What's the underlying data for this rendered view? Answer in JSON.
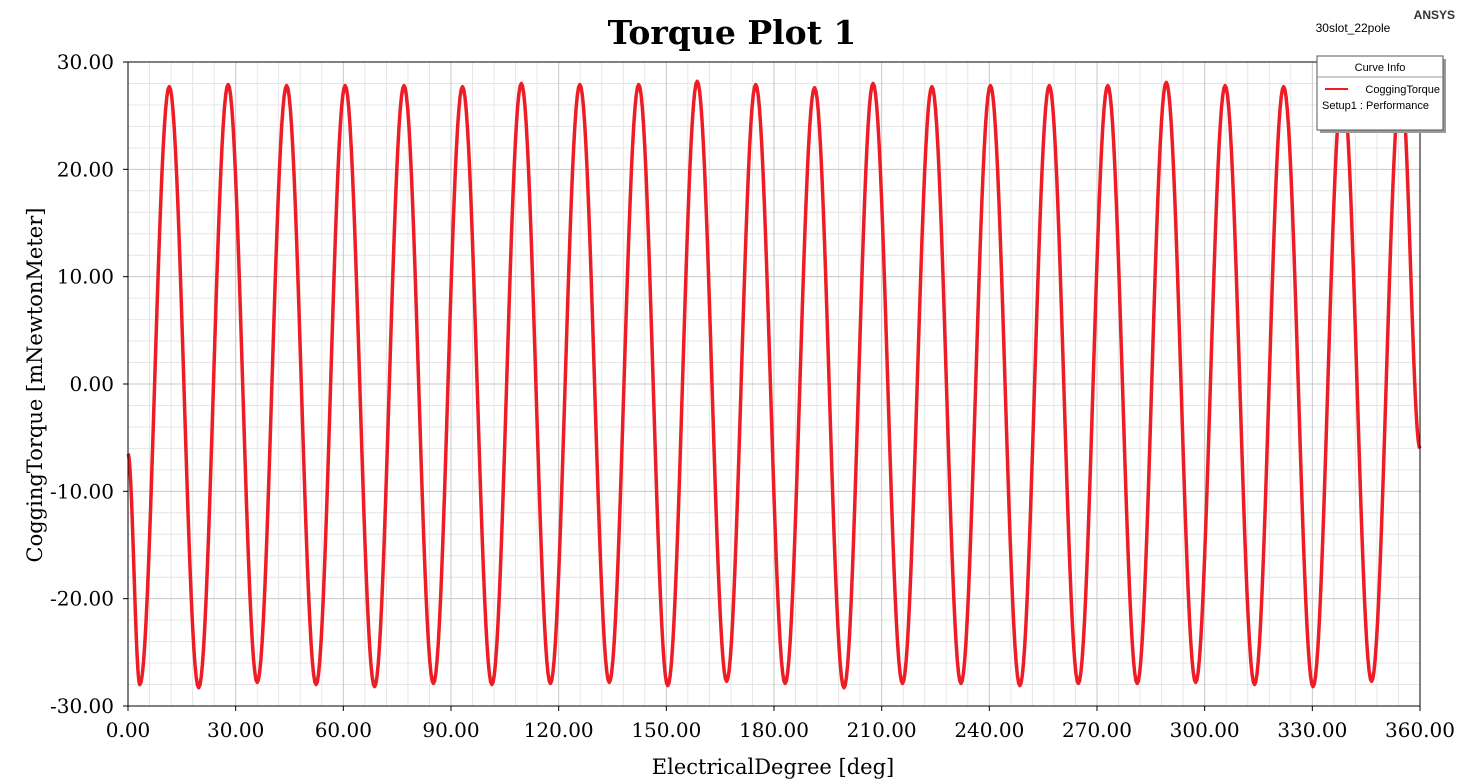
{
  "header": {
    "brand": "ANSYS",
    "design_name": "30slot_22pole"
  },
  "legend": {
    "title": "Curve Info",
    "entries": [
      {
        "name": "CoggingTorque",
        "source": "Setup1 : Performance"
      }
    ]
  },
  "colors": {
    "series": "#ee1c25",
    "grid_major": "#c8c8c8",
    "grid_minor": "#e6e6e6",
    "axis": "#000000"
  },
  "chart_data": {
    "type": "line",
    "title": "Torque Plot 1",
    "xlabel": "ElectricalDegree [deg]",
    "ylabel": "CoggingTorque [mNewtonMeter]",
    "xlim": [
      0,
      360
    ],
    "ylim": [
      -30,
      30
    ],
    "xticks": [
      "0.00",
      "30.00",
      "60.00",
      "90.00",
      "120.00",
      "150.00",
      "180.00",
      "210.00",
      "240.00",
      "270.00",
      "300.00",
      "330.00",
      "360.00"
    ],
    "yticks": [
      "30.00",
      "20.00",
      "10.00",
      "0.00",
      "-10.00",
      "-20.00",
      "-30.00"
    ],
    "grid": true,
    "legend_position": "top-right",
    "series": [
      {
        "name": "CoggingTorque",
        "x": [
          0,
          3.3,
          11.5,
          19.7,
          27.9,
          36.0,
          44.2,
          52.4,
          60.5,
          68.7,
          76.9,
          85.1,
          93.2,
          101.4,
          109.6,
          117.7,
          125.9,
          134.1,
          142.3,
          150.4,
          158.6,
          166.8,
          174.9,
          183.1,
          191.3,
          199.5,
          207.6,
          215.8,
          224.0,
          232.1,
          240.3,
          248.5,
          256.7,
          264.8,
          273.0,
          281.2,
          289.3,
          297.5,
          305.7,
          313.9,
          322.0,
          330.2,
          338.4,
          346.5,
          354.7,
          360.0
        ],
        "y": [
          -6.5,
          -28.0,
          27.7,
          -28.3,
          27.9,
          -27.8,
          27.8,
          -28.0,
          27.8,
          -28.2,
          27.8,
          -27.9,
          27.7,
          -28.0,
          28.0,
          -27.9,
          27.9,
          -27.8,
          27.9,
          -28.1,
          28.2,
          -27.7,
          27.9,
          -27.9,
          27.6,
          -28.3,
          28.0,
          -27.9,
          27.7,
          -27.9,
          27.8,
          -28.1,
          27.8,
          -27.9,
          27.8,
          -27.9,
          28.1,
          -27.8,
          27.8,
          -28.0,
          27.7,
          -28.2,
          27.8,
          -27.7,
          28.2,
          -6.0
        ]
      }
    ]
  }
}
